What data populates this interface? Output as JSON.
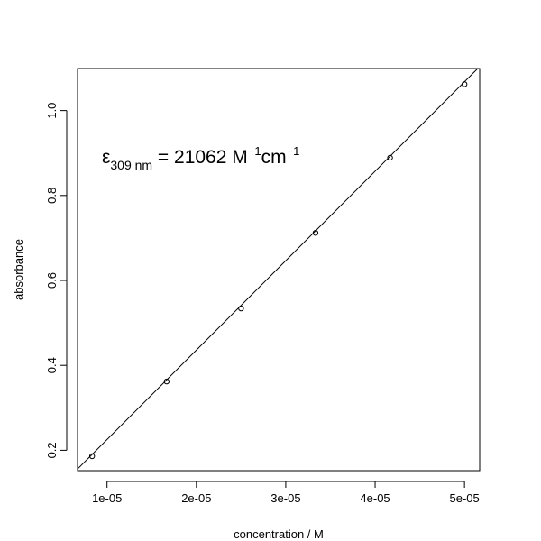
{
  "chart_data": {
    "type": "scatter",
    "title": "",
    "xlabel": "concentration / M",
    "ylabel": "absorbance",
    "xlim": [
      6.7e-06,
      5.17e-05
    ],
    "ylim": [
      0.152,
      1.099
    ],
    "x_ticks": [
      1e-05,
      2e-05,
      3e-05,
      4e-05,
      5e-05
    ],
    "x_tick_labels": [
      "1e-05",
      "2e-05",
      "3e-05",
      "4e-05",
      "5e-05"
    ],
    "y_ticks": [
      0.2,
      0.4,
      0.6,
      0.8,
      1.0
    ],
    "y_tick_labels": [
      "0.2",
      "0.4",
      "0.6",
      "0.8",
      "1.0"
    ],
    "grid": false,
    "series": [
      {
        "marker": "open-circle",
        "points": [
          {
            "x": 8.33e-06,
            "y": 0.186
          },
          {
            "x": 1.667e-05,
            "y": 0.362
          },
          {
            "x": 2.5e-05,
            "y": 0.534
          },
          {
            "x": 3.333e-05,
            "y": 0.712
          },
          {
            "x": 4.167e-05,
            "y": 0.889
          },
          {
            "x": 5e-05,
            "y": 1.062
          }
        ]
      }
    ],
    "fit_line": {
      "slope": 21062,
      "intercept": 0.0147
    },
    "annotation": {
      "symbol": "ε",
      "subscript": "309 nm",
      "equals": " = 21062 M",
      "unit_exponent_1": "−1",
      "unit_cm": "cm",
      "unit_exponent_2": "−1"
    }
  }
}
